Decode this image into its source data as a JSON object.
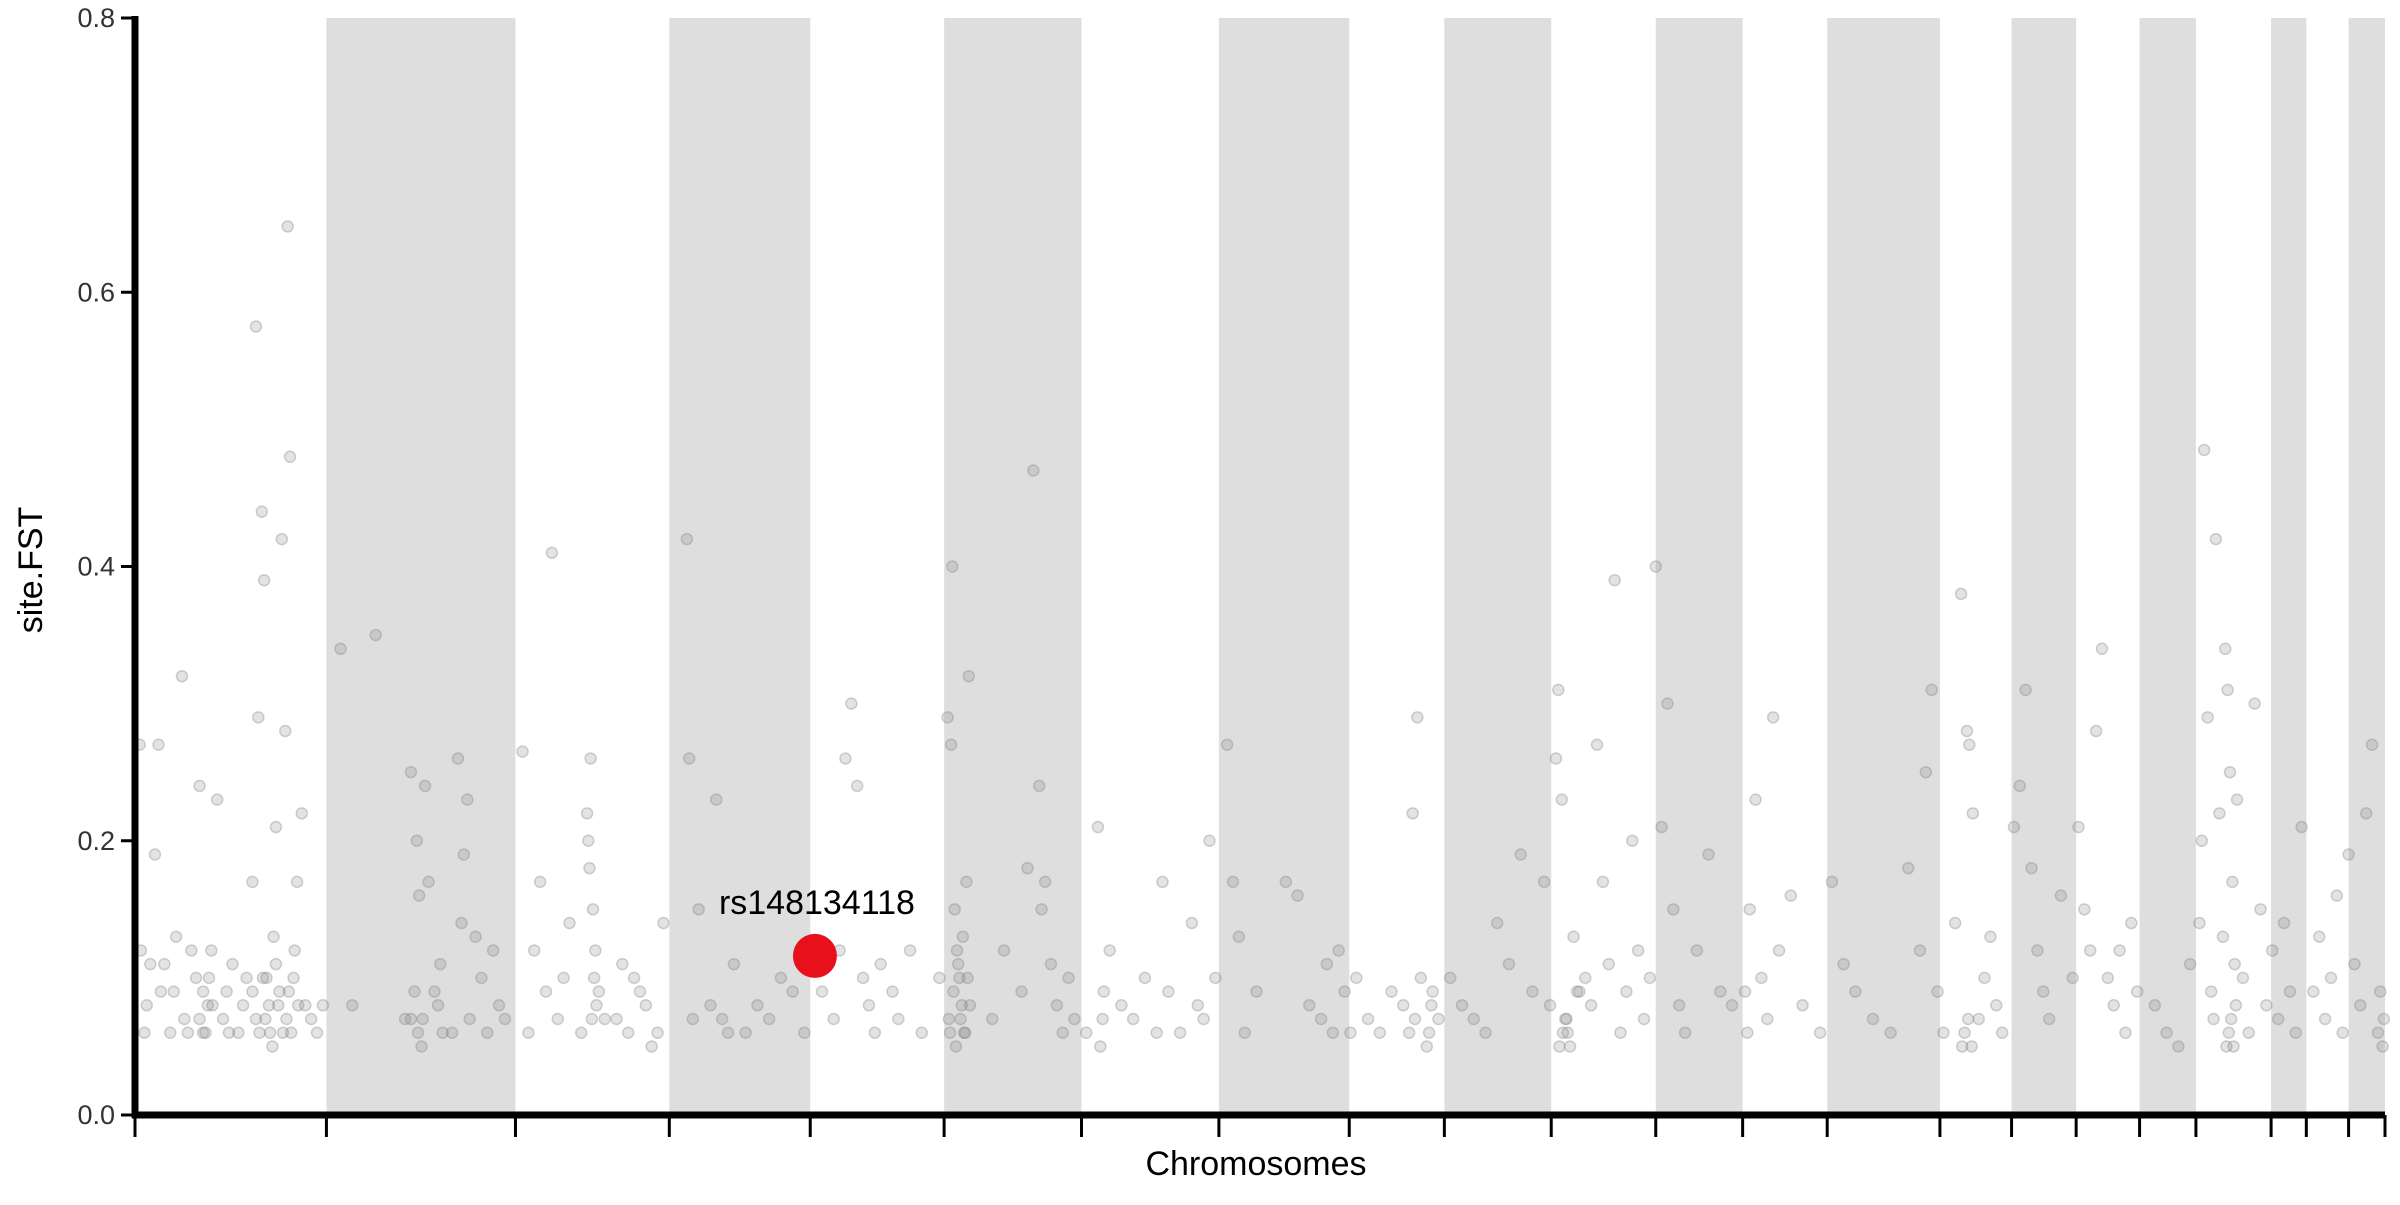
{
  "chart_data": {
    "type": "scatter",
    "subtype": "manhattan",
    "title": "",
    "xlabel": "Chromosomes",
    "ylabel": "site.FST",
    "ylim": [
      0,
      0.8
    ],
    "yticks": [
      "0.0",
      "0.2",
      "0.4",
      "0.6",
      "0.8"
    ],
    "grid": false,
    "legend": "none",
    "colors": {
      "band": "#dedede",
      "point": "#808080",
      "highlight": "#e8101a",
      "axis": "#000000"
    },
    "chromosome_boundaries": [
      0,
      1.63,
      3.24,
      4.55,
      5.75,
      6.89,
      8.06,
      9.23,
      10.34,
      11.15,
      12.06,
      12.95,
      13.69,
      14.41,
      15.37,
      15.98,
      16.53,
      17.07,
      17.55,
      18.19,
      18.49,
      18.85,
      19.16
    ],
    "shaded_chromosomes": [
      1,
      3,
      5,
      7,
      9,
      11,
      13,
      15,
      17,
      19,
      21
    ],
    "highlight": {
      "label": "rs148134118",
      "x": 5.79,
      "y": 0.116
    },
    "points": [
      [
        0.04,
        0.27
      ],
      [
        0.05,
        0.12
      ],
      [
        0.08,
        0.06
      ],
      [
        0.1,
        0.08
      ],
      [
        0.13,
        0.11
      ],
      [
        0.17,
        0.19
      ],
      [
        0.2,
        0.27
      ],
      [
        0.22,
        0.09
      ],
      [
        0.25,
        0.11
      ],
      [
        0.3,
        0.06
      ],
      [
        0.33,
        0.09
      ],
      [
        0.35,
        0.13
      ],
      [
        0.4,
        0.32
      ],
      [
        0.42,
        0.07
      ],
      [
        0.45,
        0.06
      ],
      [
        0.48,
        0.12
      ],
      [
        0.52,
        0.1
      ],
      [
        0.55,
        0.24
      ],
      [
        0.58,
        0.06
      ],
      [
        0.62,
        0.08
      ],
      [
        0.65,
        0.12
      ],
      [
        0.7,
        0.23
      ],
      [
        0.75,
        0.07
      ],
      [
        0.78,
        0.09
      ],
      [
        0.8,
        0.06
      ],
      [
        0.83,
        0.11
      ],
      [
        0.88,
        0.06
      ],
      [
        0.92,
        0.08
      ],
      [
        0.95,
        0.1
      ],
      [
        1.0,
        0.17
      ],
      [
        1.03,
        0.575
      ],
      [
        1.05,
        0.29
      ],
      [
        1.08,
        0.44
      ],
      [
        1.1,
        0.39
      ],
      [
        1.12,
        0.1
      ],
      [
        1.15,
        0.06
      ],
      [
        1.18,
        0.13
      ],
      [
        1.2,
        0.21
      ],
      [
        1.22,
        0.08
      ],
      [
        1.25,
        0.42
      ],
      [
        1.28,
        0.28
      ],
      [
        1.3,
        0.648
      ],
      [
        1.32,
        0.48
      ],
      [
        1.35,
        0.1
      ],
      [
        1.38,
        0.17
      ],
      [
        1.42,
        0.22
      ],
      [
        1.45,
        0.08
      ],
      [
        1.5,
        0.07
      ],
      [
        1.55,
        0.06
      ],
      [
        1.6,
        0.08
      ],
      [
        1.0,
        0.09
      ],
      [
        1.03,
        0.07
      ],
      [
        1.06,
        0.06
      ],
      [
        1.09,
        0.1
      ],
      [
        1.11,
        0.07
      ],
      [
        1.14,
        0.08
      ],
      [
        1.17,
        0.05
      ],
      [
        1.2,
        0.11
      ],
      [
        1.23,
        0.09
      ],
      [
        1.26,
        0.06
      ],
      [
        1.29,
        0.07
      ],
      [
        1.31,
        0.09
      ],
      [
        1.33,
        0.06
      ],
      [
        1.36,
        0.12
      ],
      [
        1.39,
        0.08
      ],
      [
        0.55,
        0.07
      ],
      [
        0.58,
        0.09
      ],
      [
        0.6,
        0.06
      ],
      [
        0.63,
        0.1
      ],
      [
        0.66,
        0.08
      ],
      [
        1.75,
        0.34
      ],
      [
        1.85,
        0.08
      ],
      [
        2.05,
        0.35
      ],
      [
        2.3,
        0.07
      ],
      [
        2.35,
        0.25
      ],
      [
        2.4,
        0.2
      ],
      [
        2.42,
        0.16
      ],
      [
        2.45,
        0.07
      ],
      [
        2.47,
        0.24
      ],
      [
        2.5,
        0.17
      ],
      [
        2.55,
        0.09
      ],
      [
        2.6,
        0.11
      ],
      [
        2.7,
        0.06
      ],
      [
        2.75,
        0.26
      ],
      [
        2.78,
        0.14
      ],
      [
        2.8,
        0.19
      ],
      [
        2.83,
        0.23
      ],
      [
        2.85,
        0.07
      ],
      [
        2.9,
        0.13
      ],
      [
        2.95,
        0.1
      ],
      [
        3.0,
        0.06
      ],
      [
        3.05,
        0.12
      ],
      [
        3.1,
        0.08
      ],
      [
        3.15,
        0.07
      ],
      [
        2.35,
        0.07
      ],
      [
        2.38,
        0.09
      ],
      [
        2.41,
        0.06
      ],
      [
        2.44,
        0.05
      ],
      [
        2.58,
        0.08
      ],
      [
        2.62,
        0.06
      ],
      [
        3.3,
        0.265
      ],
      [
        3.35,
        0.06
      ],
      [
        3.4,
        0.12
      ],
      [
        3.45,
        0.17
      ],
      [
        3.5,
        0.09
      ],
      [
        3.55,
        0.41
      ],
      [
        3.6,
        0.07
      ],
      [
        3.65,
        0.1
      ],
      [
        3.7,
        0.14
      ],
      [
        3.8,
        0.06
      ],
      [
        3.85,
        0.22
      ],
      [
        3.88,
        0.26
      ],
      [
        3.9,
        0.15
      ],
      [
        3.92,
        0.12
      ],
      [
        3.95,
        0.09
      ],
      [
        4.0,
        0.07
      ],
      [
        4.1,
        0.07
      ],
      [
        4.15,
        0.11
      ],
      [
        4.2,
        0.06
      ],
      [
        4.25,
        0.1
      ],
      [
        4.3,
        0.09
      ],
      [
        4.35,
        0.08
      ],
      [
        4.4,
        0.05
      ],
      [
        4.45,
        0.06
      ],
      [
        4.5,
        0.14
      ],
      [
        3.86,
        0.2
      ],
      [
        3.87,
        0.18
      ],
      [
        3.89,
        0.07
      ],
      [
        3.91,
        0.1
      ],
      [
        3.93,
        0.08
      ],
      [
        4.7,
        0.42
      ],
      [
        4.72,
        0.26
      ],
      [
        4.75,
        0.07
      ],
      [
        4.8,
        0.15
      ],
      [
        4.9,
        0.08
      ],
      [
        4.95,
        0.23
      ],
      [
        5.0,
        0.07
      ],
      [
        5.05,
        0.06
      ],
      [
        5.1,
        0.11
      ],
      [
        5.2,
        0.06
      ],
      [
        5.3,
        0.08
      ],
      [
        5.4,
        0.07
      ],
      [
        5.5,
        0.1
      ],
      [
        5.6,
        0.09
      ],
      [
        5.7,
        0.06
      ],
      [
        5.85,
        0.09
      ],
      [
        5.95,
        0.07
      ],
      [
        6.0,
        0.12
      ],
      [
        6.05,
        0.26
      ],
      [
        6.1,
        0.3
      ],
      [
        6.15,
        0.24
      ],
      [
        6.2,
        0.1
      ],
      [
        6.25,
        0.08
      ],
      [
        6.3,
        0.06
      ],
      [
        6.35,
        0.11
      ],
      [
        6.45,
        0.09
      ],
      [
        6.5,
        0.07
      ],
      [
        6.6,
        0.12
      ],
      [
        6.7,
        0.06
      ],
      [
        6.85,
        0.1
      ],
      [
        6.92,
        0.29
      ],
      [
        6.95,
        0.27
      ],
      [
        6.96,
        0.4
      ],
      [
        6.98,
        0.15
      ],
      [
        7.0,
        0.12
      ],
      [
        7.02,
        0.1
      ],
      [
        7.04,
        0.08
      ],
      [
        7.06,
        0.06
      ],
      [
        7.08,
        0.17
      ],
      [
        7.1,
        0.32
      ],
      [
        6.93,
        0.07
      ],
      [
        6.94,
        0.06
      ],
      [
        6.97,
        0.09
      ],
      [
        6.99,
        0.05
      ],
      [
        7.01,
        0.11
      ],
      [
        7.03,
        0.07
      ],
      [
        7.05,
        0.13
      ],
      [
        7.07,
        0.06
      ],
      [
        7.09,
        0.1
      ],
      [
        7.11,
        0.08
      ],
      [
        7.3,
        0.07
      ],
      [
        7.4,
        0.12
      ],
      [
        7.55,
        0.09
      ],
      [
        7.6,
        0.18
      ],
      [
        7.65,
        0.47
      ],
      [
        7.7,
        0.24
      ],
      [
        7.72,
        0.15
      ],
      [
        7.75,
        0.17
      ],
      [
        7.8,
        0.11
      ],
      [
        7.85,
        0.08
      ],
      [
        7.9,
        0.06
      ],
      [
        7.95,
        0.1
      ],
      [
        8.0,
        0.07
      ],
      [
        8.1,
        0.06
      ],
      [
        8.2,
        0.21
      ],
      [
        8.25,
        0.09
      ],
      [
        8.3,
        0.12
      ],
      [
        8.4,
        0.08
      ],
      [
        8.5,
        0.07
      ],
      [
        8.6,
        0.1
      ],
      [
        8.7,
        0.06
      ],
      [
        8.75,
        0.17
      ],
      [
        8.8,
        0.09
      ],
      [
        8.9,
        0.06
      ],
      [
        9.0,
        0.14
      ],
      [
        9.05,
        0.08
      ],
      [
        9.1,
        0.07
      ],
      [
        9.15,
        0.2
      ],
      [
        9.2,
        0.1
      ],
      [
        9.3,
        0.27
      ],
      [
        9.35,
        0.17
      ],
      [
        9.4,
        0.13
      ],
      [
        9.45,
        0.06
      ],
      [
        9.55,
        0.09
      ],
      [
        9.8,
        0.17
      ],
      [
        9.9,
        0.16
      ],
      [
        10.0,
        0.08
      ],
      [
        10.1,
        0.07
      ],
      [
        10.15,
        0.11
      ],
      [
        10.2,
        0.06
      ],
      [
        10.25,
        0.12
      ],
      [
        10.3,
        0.09
      ],
      [
        10.35,
        0.06
      ],
      [
        10.4,
        0.1
      ],
      [
        10.5,
        0.07
      ],
      [
        10.6,
        0.06
      ],
      [
        10.7,
        0.09
      ],
      [
        10.8,
        0.08
      ],
      [
        10.85,
        0.06
      ],
      [
        10.9,
        0.07
      ],
      [
        10.95,
        0.1
      ],
      [
        11.0,
        0.05
      ],
      [
        11.05,
        0.09
      ],
      [
        11.1,
        0.07
      ],
      [
        10.88,
        0.22
      ],
      [
        10.92,
        0.29
      ],
      [
        11.2,
        0.1
      ],
      [
        11.3,
        0.08
      ],
      [
        11.4,
        0.07
      ],
      [
        11.5,
        0.06
      ],
      [
        11.6,
        0.14
      ],
      [
        11.7,
        0.11
      ],
      [
        11.8,
        0.19
      ],
      [
        11.9,
        0.09
      ],
      [
        12.0,
        0.17
      ],
      [
        12.05,
        0.08
      ],
      [
        12.1,
        0.26
      ],
      [
        12.12,
        0.31
      ],
      [
        12.15,
        0.23
      ],
      [
        12.18,
        0.07
      ],
      [
        12.2,
        0.06
      ],
      [
        12.25,
        0.13
      ],
      [
        12.3,
        0.09
      ],
      [
        12.35,
        0.1
      ],
      [
        12.4,
        0.08
      ],
      [
        12.45,
        0.27
      ],
      [
        12.5,
        0.17
      ],
      [
        12.55,
        0.11
      ],
      [
        12.6,
        0.39
      ],
      [
        12.65,
        0.06
      ],
      [
        12.7,
        0.09
      ],
      [
        12.75,
        0.2
      ],
      [
        12.8,
        0.12
      ],
      [
        12.85,
        0.07
      ],
      [
        12.9,
        0.1
      ],
      [
        12.95,
        0.4
      ],
      [
        13.0,
        0.21
      ],
      [
        13.05,
        0.3
      ],
      [
        13.1,
        0.15
      ],
      [
        13.15,
        0.08
      ],
      [
        13.2,
        0.06
      ],
      [
        13.3,
        0.12
      ],
      [
        13.4,
        0.19
      ],
      [
        13.5,
        0.09
      ],
      [
        13.6,
        0.08
      ],
      [
        12.13,
        0.05
      ],
      [
        12.16,
        0.06
      ],
      [
        12.19,
        0.07
      ],
      [
        12.22,
        0.05
      ],
      [
        12.28,
        0.09
      ],
      [
        13.75,
        0.15
      ],
      [
        13.8,
        0.23
      ],
      [
        13.85,
        0.1
      ],
      [
        13.9,
        0.07
      ],
      [
        13.95,
        0.29
      ],
      [
        14.0,
        0.12
      ],
      [
        14.1,
        0.16
      ],
      [
        14.2,
        0.08
      ],
      [
        14.35,
        0.06
      ],
      [
        14.45,
        0.17
      ],
      [
        14.55,
        0.11
      ],
      [
        14.65,
        0.09
      ],
      [
        14.8,
        0.07
      ],
      [
        14.95,
        0.06
      ],
      [
        15.1,
        0.18
      ],
      [
        15.2,
        0.12
      ],
      [
        15.25,
        0.25
      ],
      [
        15.3,
        0.31
      ],
      [
        15.35,
        0.09
      ],
      [
        15.4,
        0.06
      ],
      [
        15.5,
        0.14
      ],
      [
        15.55,
        0.38
      ],
      [
        15.6,
        0.28
      ],
      [
        15.62,
        0.27
      ],
      [
        15.65,
        0.22
      ],
      [
        15.7,
        0.07
      ],
      [
        15.75,
        0.1
      ],
      [
        15.8,
        0.13
      ],
      [
        15.85,
        0.08
      ],
      [
        15.9,
        0.06
      ],
      [
        16.0,
        0.21
      ],
      [
        16.05,
        0.24
      ],
      [
        16.1,
        0.31
      ],
      [
        16.15,
        0.18
      ],
      [
        16.2,
        0.12
      ],
      [
        16.25,
        0.09
      ],
      [
        16.3,
        0.07
      ],
      [
        16.4,
        0.16
      ],
      [
        16.5,
        0.1
      ],
      [
        16.55,
        0.21
      ],
      [
        16.6,
        0.15
      ],
      [
        16.65,
        0.12
      ],
      [
        16.7,
        0.28
      ],
      [
        16.75,
        0.34
      ],
      [
        16.8,
        0.1
      ],
      [
        16.85,
        0.08
      ],
      [
        16.9,
        0.12
      ],
      [
        16.95,
        0.06
      ],
      [
        17.0,
        0.14
      ],
      [
        17.05,
        0.09
      ],
      [
        17.2,
        0.08
      ],
      [
        17.3,
        0.06
      ],
      [
        17.4,
        0.05
      ],
      [
        17.5,
        0.11
      ],
      [
        17.58,
        0.14
      ],
      [
        17.6,
        0.2
      ],
      [
        17.62,
        0.485
      ],
      [
        17.65,
        0.29
      ],
      [
        17.68,
        0.09
      ],
      [
        17.7,
        0.07
      ],
      [
        17.72,
        0.42
      ],
      [
        17.75,
        0.22
      ],
      [
        17.78,
        0.13
      ],
      [
        17.8,
        0.34
      ],
      [
        17.82,
        0.31
      ],
      [
        17.84,
        0.25
      ],
      [
        17.86,
        0.17
      ],
      [
        17.88,
        0.11
      ],
      [
        17.9,
        0.23
      ],
      [
        17.95,
        0.1
      ],
      [
        18.0,
        0.06
      ],
      [
        18.05,
        0.3
      ],
      [
        18.1,
        0.15
      ],
      [
        18.15,
        0.08
      ],
      [
        18.2,
        0.12
      ],
      [
        18.25,
        0.07
      ],
      [
        18.3,
        0.14
      ],
      [
        18.35,
        0.09
      ],
      [
        18.4,
        0.06
      ],
      [
        18.45,
        0.21
      ],
      [
        18.55,
        0.09
      ],
      [
        18.6,
        0.13
      ],
      [
        18.65,
        0.07
      ],
      [
        18.7,
        0.1
      ],
      [
        18.75,
        0.16
      ],
      [
        18.8,
        0.06
      ],
      [
        18.85,
        0.19
      ],
      [
        18.9,
        0.11
      ],
      [
        18.95,
        0.08
      ],
      [
        19.0,
        0.22
      ],
      [
        19.05,
        0.27
      ],
      [
        19.1,
        0.06
      ],
      [
        19.12,
        0.09
      ],
      [
        19.14,
        0.05
      ],
      [
        19.15,
        0.07
      ],
      [
        17.81,
        0.05
      ],
      [
        17.83,
        0.06
      ],
      [
        17.85,
        0.07
      ],
      [
        17.87,
        0.05
      ],
      [
        17.89,
        0.08
      ],
      [
        15.56,
        0.05
      ],
      [
        15.58,
        0.06
      ],
      [
        15.61,
        0.07
      ],
      [
        15.64,
        0.05
      ],
      [
        13.71,
        0.09
      ],
      [
        13.73,
        0.06
      ],
      [
        11.02,
        0.06
      ],
      [
        11.04,
        0.08
      ],
      [
        8.22,
        0.05
      ],
      [
        8.24,
        0.07
      ]
    ]
  }
}
